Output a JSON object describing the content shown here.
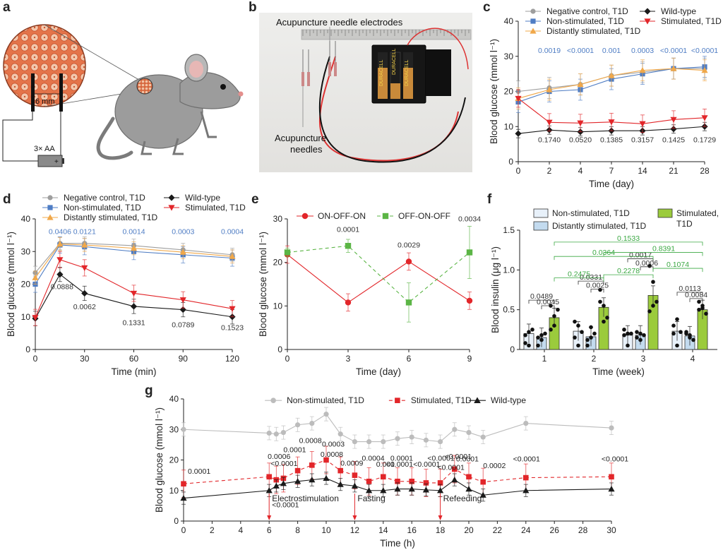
{
  "panels": {
    "a": {
      "letter": "a",
      "gap_label": "6 mm",
      "battery_label": "3× AA",
      "battery_plus": "+"
    },
    "b": {
      "letter": "b",
      "electrode_label": "Acupuncture needle electrodes",
      "needles_label_1": "Acupuncture",
      "needles_label_2": "needles",
      "battery_brand": "DURACELL"
    },
    "c": {
      "letter": "c"
    },
    "d": {
      "letter": "d"
    },
    "e": {
      "letter": "e"
    },
    "f": {
      "letter": "f"
    },
    "g": {
      "letter": "g"
    }
  },
  "colors": {
    "negative": "#9e9e9e",
    "nonstim": "#4f7dc4",
    "distant": "#f0a84a",
    "wildtype": "#1a1a1a",
    "stimulated": "#e2262a",
    "pvalue_blue": "#4f7dc4",
    "green": "#5bb545",
    "bar_nonstim": "#e8f1fa",
    "bar_distant": "#c3dbef",
    "bar_stim": "#9bcb3c",
    "bracket_green": "#3aa842"
  },
  "chart_data": [
    {
      "id": "c",
      "type": "line",
      "xlabel": "Time (day)",
      "ylabel": "Blood glucose (mmol l⁻¹)",
      "xlim": [
        0,
        28
      ],
      "ylim": [
        0,
        40
      ],
      "x": [
        0,
        2,
        4,
        7,
        14,
        21,
        28
      ],
      "xticks": [
        "0",
        "2",
        "4",
        "7",
        "14",
        "21",
        "28"
      ],
      "yticks": [
        "0",
        "10",
        "20",
        "30",
        "40"
      ],
      "series": [
        {
          "name": "Negative control, T1D",
          "values": [
            20,
            21,
            22,
            24.5,
            25.5,
            26.5,
            26.5
          ]
        },
        {
          "name": "Non-stimulated, T1D",
          "values": [
            17,
            20,
            20.5,
            23.5,
            25,
            26.5,
            27
          ]
        },
        {
          "name": "Distantly stimulated, T1D",
          "values": [
            18,
            20.5,
            22,
            24.5,
            26,
            26.5,
            26
          ]
        },
        {
          "name": "Wild-type",
          "values": [
            8,
            9,
            8.5,
            8.8,
            8.8,
            9.3,
            10
          ]
        },
        {
          "name": "Stimulated, T1D",
          "values": [
            18,
            11.2,
            11,
            11.3,
            10.8,
            12,
            12.5
          ]
        }
      ],
      "pvalues_top": [
        "0.0019",
        "<0.0001",
        "0.001",
        "0.0003",
        "<0.0001",
        "<0.0001"
      ],
      "pvalues_bottom": [
        "0.1740",
        "0.0520",
        "0.1385",
        "0.3157",
        "0.1425",
        "0.1729"
      ]
    },
    {
      "id": "d",
      "type": "line",
      "xlabel": "Time (min)",
      "ylabel": "Blood glucose (mmol l⁻¹)",
      "xlim": [
        0,
        120
      ],
      "ylim": [
        0,
        40
      ],
      "x": [
        0,
        15,
        30,
        60,
        90,
        120
      ],
      "xticks": [
        "0",
        "30",
        "60",
        "90",
        "120"
      ],
      "yticks": [
        "0",
        "10",
        "20",
        "30",
        "40"
      ],
      "series": [
        {
          "name": "Negative control, T1D",
          "values": [
            23.5,
            32.5,
            32.5,
            31.8,
            30.5,
            29
          ]
        },
        {
          "name": "Non-stimulated, T1D",
          "values": [
            20,
            32,
            31.5,
            30,
            29,
            28
          ]
        },
        {
          "name": "Distantly stimulated, T1D",
          "values": [
            22,
            32.3,
            32,
            31,
            29.8,
            28.5
          ]
        },
        {
          "name": "Wild-type",
          "values": [
            9.5,
            23,
            17.2,
            13.2,
            12.2,
            10
          ]
        },
        {
          "name": "Stimulated, T1D",
          "values": [
            9.8,
            27.5,
            25,
            17.2,
            15.2,
            12.5
          ]
        }
      ],
      "pvalues_top": [
        "0.0406",
        "0.0121",
        "0.0014",
        "0.0003",
        "0.0004"
      ],
      "pvalues_bottom": [
        "0.0888",
        "0.0062",
        "0.1331",
        "0.0789",
        "0.1523"
      ]
    },
    {
      "id": "e",
      "type": "line",
      "xlabel": "Time (day)",
      "ylabel": "Blood glucose (mmol l⁻¹)",
      "xlim": [
        0,
        9
      ],
      "ylim": [
        0,
        30
      ],
      "x": [
        0,
        3,
        6,
        9
      ],
      "xticks": [
        "0",
        "3",
        "6",
        "9"
      ],
      "yticks": [
        "0",
        "10",
        "20",
        "30"
      ],
      "series": [
        {
          "name": "ON-OFF-ON",
          "values": [
            21.8,
            10.8,
            20.2,
            11.2
          ]
        },
        {
          "name": "OFF-ON-OFF",
          "values": [
            22.3,
            23.8,
            10.8,
            22.3
          ]
        }
      ],
      "pvalues": [
        "0.0001",
        "0.0029",
        "0.0034"
      ]
    },
    {
      "id": "f",
      "type": "bar",
      "xlabel": "Time (week)",
      "ylabel": "Blood insulin (μg l⁻¹)",
      "ylim": [
        0,
        1.5
      ],
      "categories": [
        "1",
        "2",
        "3",
        "4"
      ],
      "yticks": [
        "0",
        "0.5",
        "1.0",
        "1.5"
      ],
      "series": [
        {
          "name": "Non-stimulated, T1D",
          "values": [
            0.2,
            0.23,
            0.18,
            0.23
          ]
        },
        {
          "name": "Distantly stimulated, T1D",
          "values": [
            0.15,
            0.16,
            0.18,
            0.17
          ]
        },
        {
          "name": "Stimulated, T1D",
          "values": [
            0.4,
            0.53,
            0.68,
            0.5
          ]
        }
      ],
      "pvalues": [
        "0.0489",
        "0.0045",
        "0.0331",
        "0.0025",
        "0.0017",
        "0.0006",
        "0.0113",
        "0.0084",
        "0.2475",
        "0.2278",
        "0.1074",
        "0.0364",
        "0.8391",
        "0.1533"
      ]
    },
    {
      "id": "g",
      "type": "line",
      "xlabel": "Time (h)",
      "ylabel": "Blood glucose (mmol l⁻¹)",
      "xlim": [
        0,
        30
      ],
      "ylim": [
        0,
        40
      ],
      "xticks": [
        "0",
        "2",
        "4",
        "6",
        "8",
        "10",
        "12",
        "14",
        "16",
        "18",
        "20",
        "22",
        "24",
        "26",
        "28",
        "30"
      ],
      "yticks": [
        "0",
        "10",
        "20",
        "30",
        "40"
      ],
      "x": [
        0,
        6,
        6.5,
        7,
        8,
        9,
        10,
        11,
        12,
        13,
        14,
        15,
        16,
        17,
        18,
        19,
        20,
        21,
        24,
        30
      ],
      "series": [
        {
          "name": "Non-stimulated, T1D",
          "values": [
            30,
            28.8,
            28.5,
            29,
            31.5,
            32,
            35,
            28.5,
            26,
            26,
            26,
            27,
            27.5,
            26.5,
            26,
            30,
            29,
            27.5,
            32,
            30.5
          ]
        },
        {
          "name": "Stimulated, T1D",
          "values": [
            12.2,
            14.5,
            13.5,
            14,
            16.5,
            18.3,
            20,
            16.5,
            15,
            13,
            14.5,
            13,
            13,
            12.5,
            12.5,
            17,
            14.5,
            12.8,
            14.2,
            14.5
          ]
        },
        {
          "name": "Wild-type",
          "values": [
            7.5,
            10,
            11.5,
            12.3,
            13,
            13.5,
            14,
            12,
            11.5,
            10,
            10,
            10.5,
            10.5,
            10.2,
            10,
            13.5,
            10.5,
            8.5,
            10,
            10.5
          ]
        }
      ],
      "annotations": [
        "Electrostimulation",
        "Fasting",
        "Refeeding"
      ],
      "pvalues": [
        "0.0001",
        "0.0006",
        "<0.0001",
        "0.0001",
        "0.0008",
        "0.0003",
        "0.0008",
        "0.0009",
        "0.0004",
        "0.001",
        "0.0001",
        "<0.0001",
        "<0.0001",
        "<0.0001",
        "<0.0001",
        "<0.0001",
        "0.0001",
        "0.0002",
        "<0.0001",
        "<0.0001",
        "<0.0001"
      ]
    }
  ]
}
